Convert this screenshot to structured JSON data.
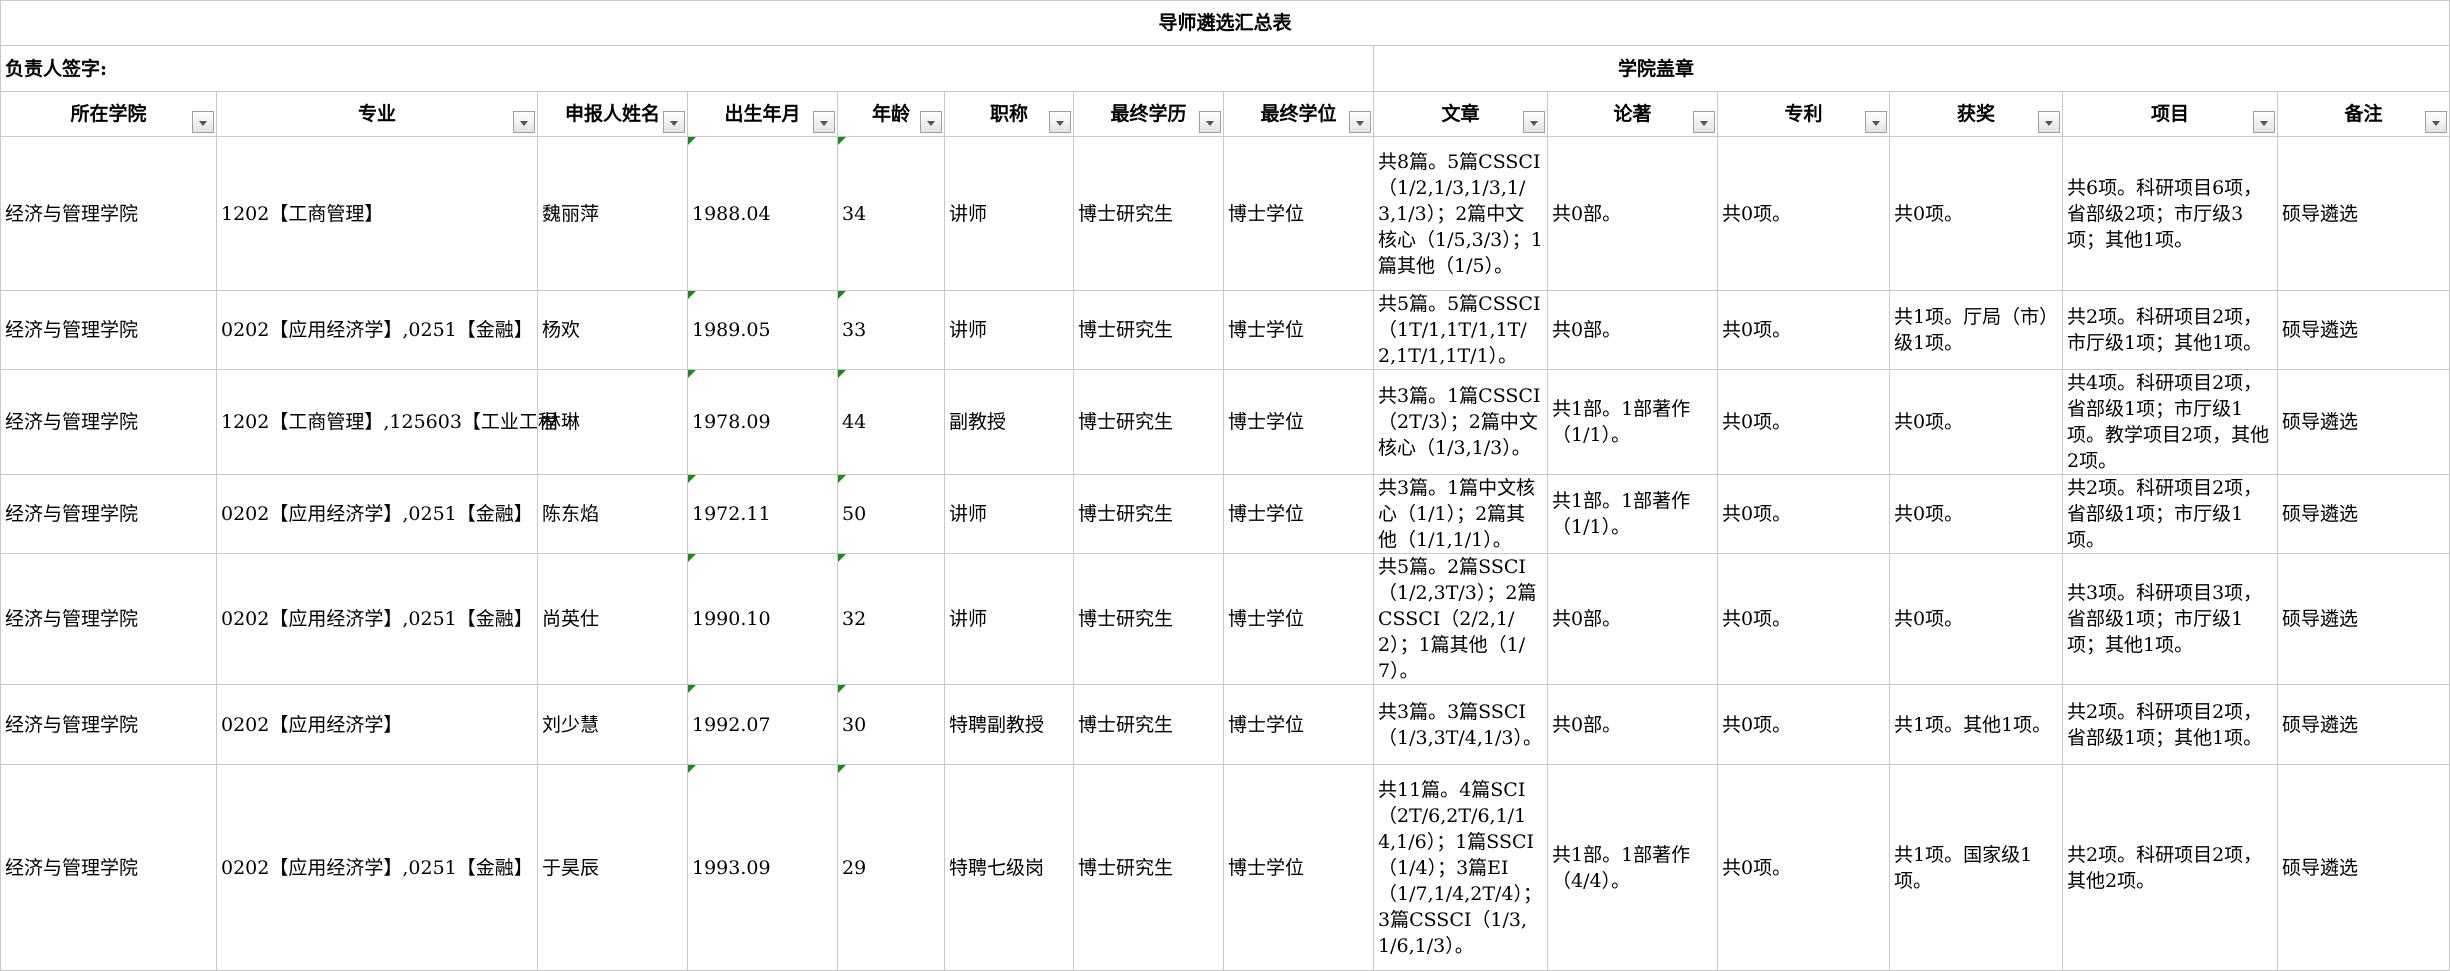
{
  "title": "导师遴选汇总表",
  "signature_label": "负责人签字:",
  "seal_label": "学院盖章",
  "columns": [
    "所在学院",
    "专业",
    "申报人姓名",
    "出生年月",
    "年龄",
    "职称",
    "最终学历",
    "最终学位",
    "文章",
    "论著",
    "专利",
    "获奖",
    "项目",
    "备注"
  ],
  "rows": [
    [
      "经济与管理学院",
      "1202【工商管理】",
      "魏丽萍",
      "1988.04",
      "34",
      "讲师",
      "博士研究生",
      "博士学位",
      "共8篇。5篇CSSCI（1/2,1/3,1/3,1/3,1/3）；2篇中文核心（1/5,3/3）；1篇其他（1/5）。",
      "共0部。",
      "共0项。",
      "共0项。",
      "共6项。科研项目6项，省部级2项；市厅级3项；其他1项。",
      "硕导遴选"
    ],
    [
      "经济与管理学院",
      "0202【应用经济学】,0251【金融】",
      "杨欢",
      "1989.05",
      "33",
      "讲师",
      "博士研究生",
      "博士学位",
      "共5篇。5篇CSSCI（1T/1,1T/1,1T/2,1T/1,1T/1）。",
      "共0部。",
      "共0项。",
      "共1项。厅局（市）级1项。",
      "共2项。科研项目2项，市厅级1项；其他1项。",
      "硕导遴选"
    ],
    [
      "经济与管理学院",
      "1202【工商管理】,125603【工业工程",
      "林琳",
      "1978.09",
      "44",
      "副教授",
      "博士研究生",
      "博士学位",
      "共3篇。1篇CSSCI（2T/3）；2篇中文核心（1/3,1/3）。",
      "共1部。1部著作（1/1）。",
      "共0项。",
      "共0项。",
      "共4项。科研项目2项，省部级1项；市厅级1项。教学项目2项，其他2项。",
      "硕导遴选"
    ],
    [
      "经济与管理学院",
      "0202【应用经济学】,0251【金融】",
      "陈东焰",
      "1972.11",
      "50",
      "讲师",
      "博士研究生",
      "博士学位",
      "共3篇。1篇中文核心（1/1）；2篇其他（1/1,1/1）。",
      "共1部。1部著作（1/1）。",
      "共0项。",
      "共0项。",
      "共2项。科研项目2项，省部级1项；市厅级1项。",
      "硕导遴选"
    ],
    [
      "经济与管理学院",
      "0202【应用经济学】,0251【金融】",
      "尚英仕",
      "1990.10",
      "32",
      "讲师",
      "博士研究生",
      "博士学位",
      "共5篇。2篇SSCI（1/2,3T/3）；2篇CSSCI（2/2,1/2）；1篇其他（1/7）。",
      "共0部。",
      "共0项。",
      "共0项。",
      "共3项。科研项目3项，省部级1项；市厅级1项；其他1项。",
      "硕导遴选"
    ],
    [
      "经济与管理学院",
      "0202【应用经济学】",
      "刘少慧",
      "1992.07",
      "30",
      "特聘副教授",
      "博士研究生",
      "博士学位",
      "共3篇。3篇SSCI（1/3,3T/4,1/3）。",
      "共0部。",
      "共0项。",
      "共1项。其他1项。",
      "共2项。科研项目2项，省部级1项；其他1项。",
      "硕导遴选"
    ],
    [
      "经济与管理学院",
      "0202【应用经济学】,0251【金融】",
      "于昊辰",
      "1993.09",
      "29",
      "特聘七级岗",
      "博士研究生",
      "博士学位",
      "共11篇。4篇SCI（2T/6,2T/6,1/14,1/6）；1篇SSCI（1/4）；3篇EI（1/7,1/4,2T/4）；3篇CSSCI（1/3,1/6,1/3）。",
      "共1部。1部著作（4/4）。",
      "共0项。",
      "共1项。国家级1项。",
      "共2项。科研项目2项，其他2项。",
      "硕导遴选"
    ]
  ],
  "colors": {
    "grid": "#c8c8c8",
    "note_marker": "#1a8a1a"
  }
}
